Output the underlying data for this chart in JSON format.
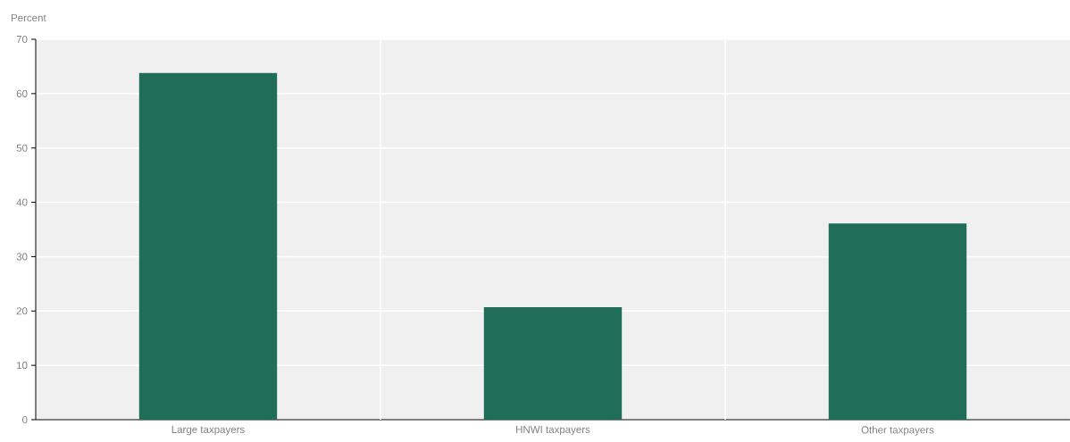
{
  "chart_data": {
    "type": "bar",
    "ylabel": "Percent",
    "categories": [
      "Large taxpayers",
      "HNWI taxpayers",
      "Other taxpayers"
    ],
    "values": [
      63.8,
      20.7,
      36.1
    ],
    "color": "#206e5a",
    "ylim": [
      0,
      70
    ],
    "yticks": [
      0,
      10,
      20,
      30,
      40,
      50,
      60,
      70
    ],
    "grid": true
  }
}
